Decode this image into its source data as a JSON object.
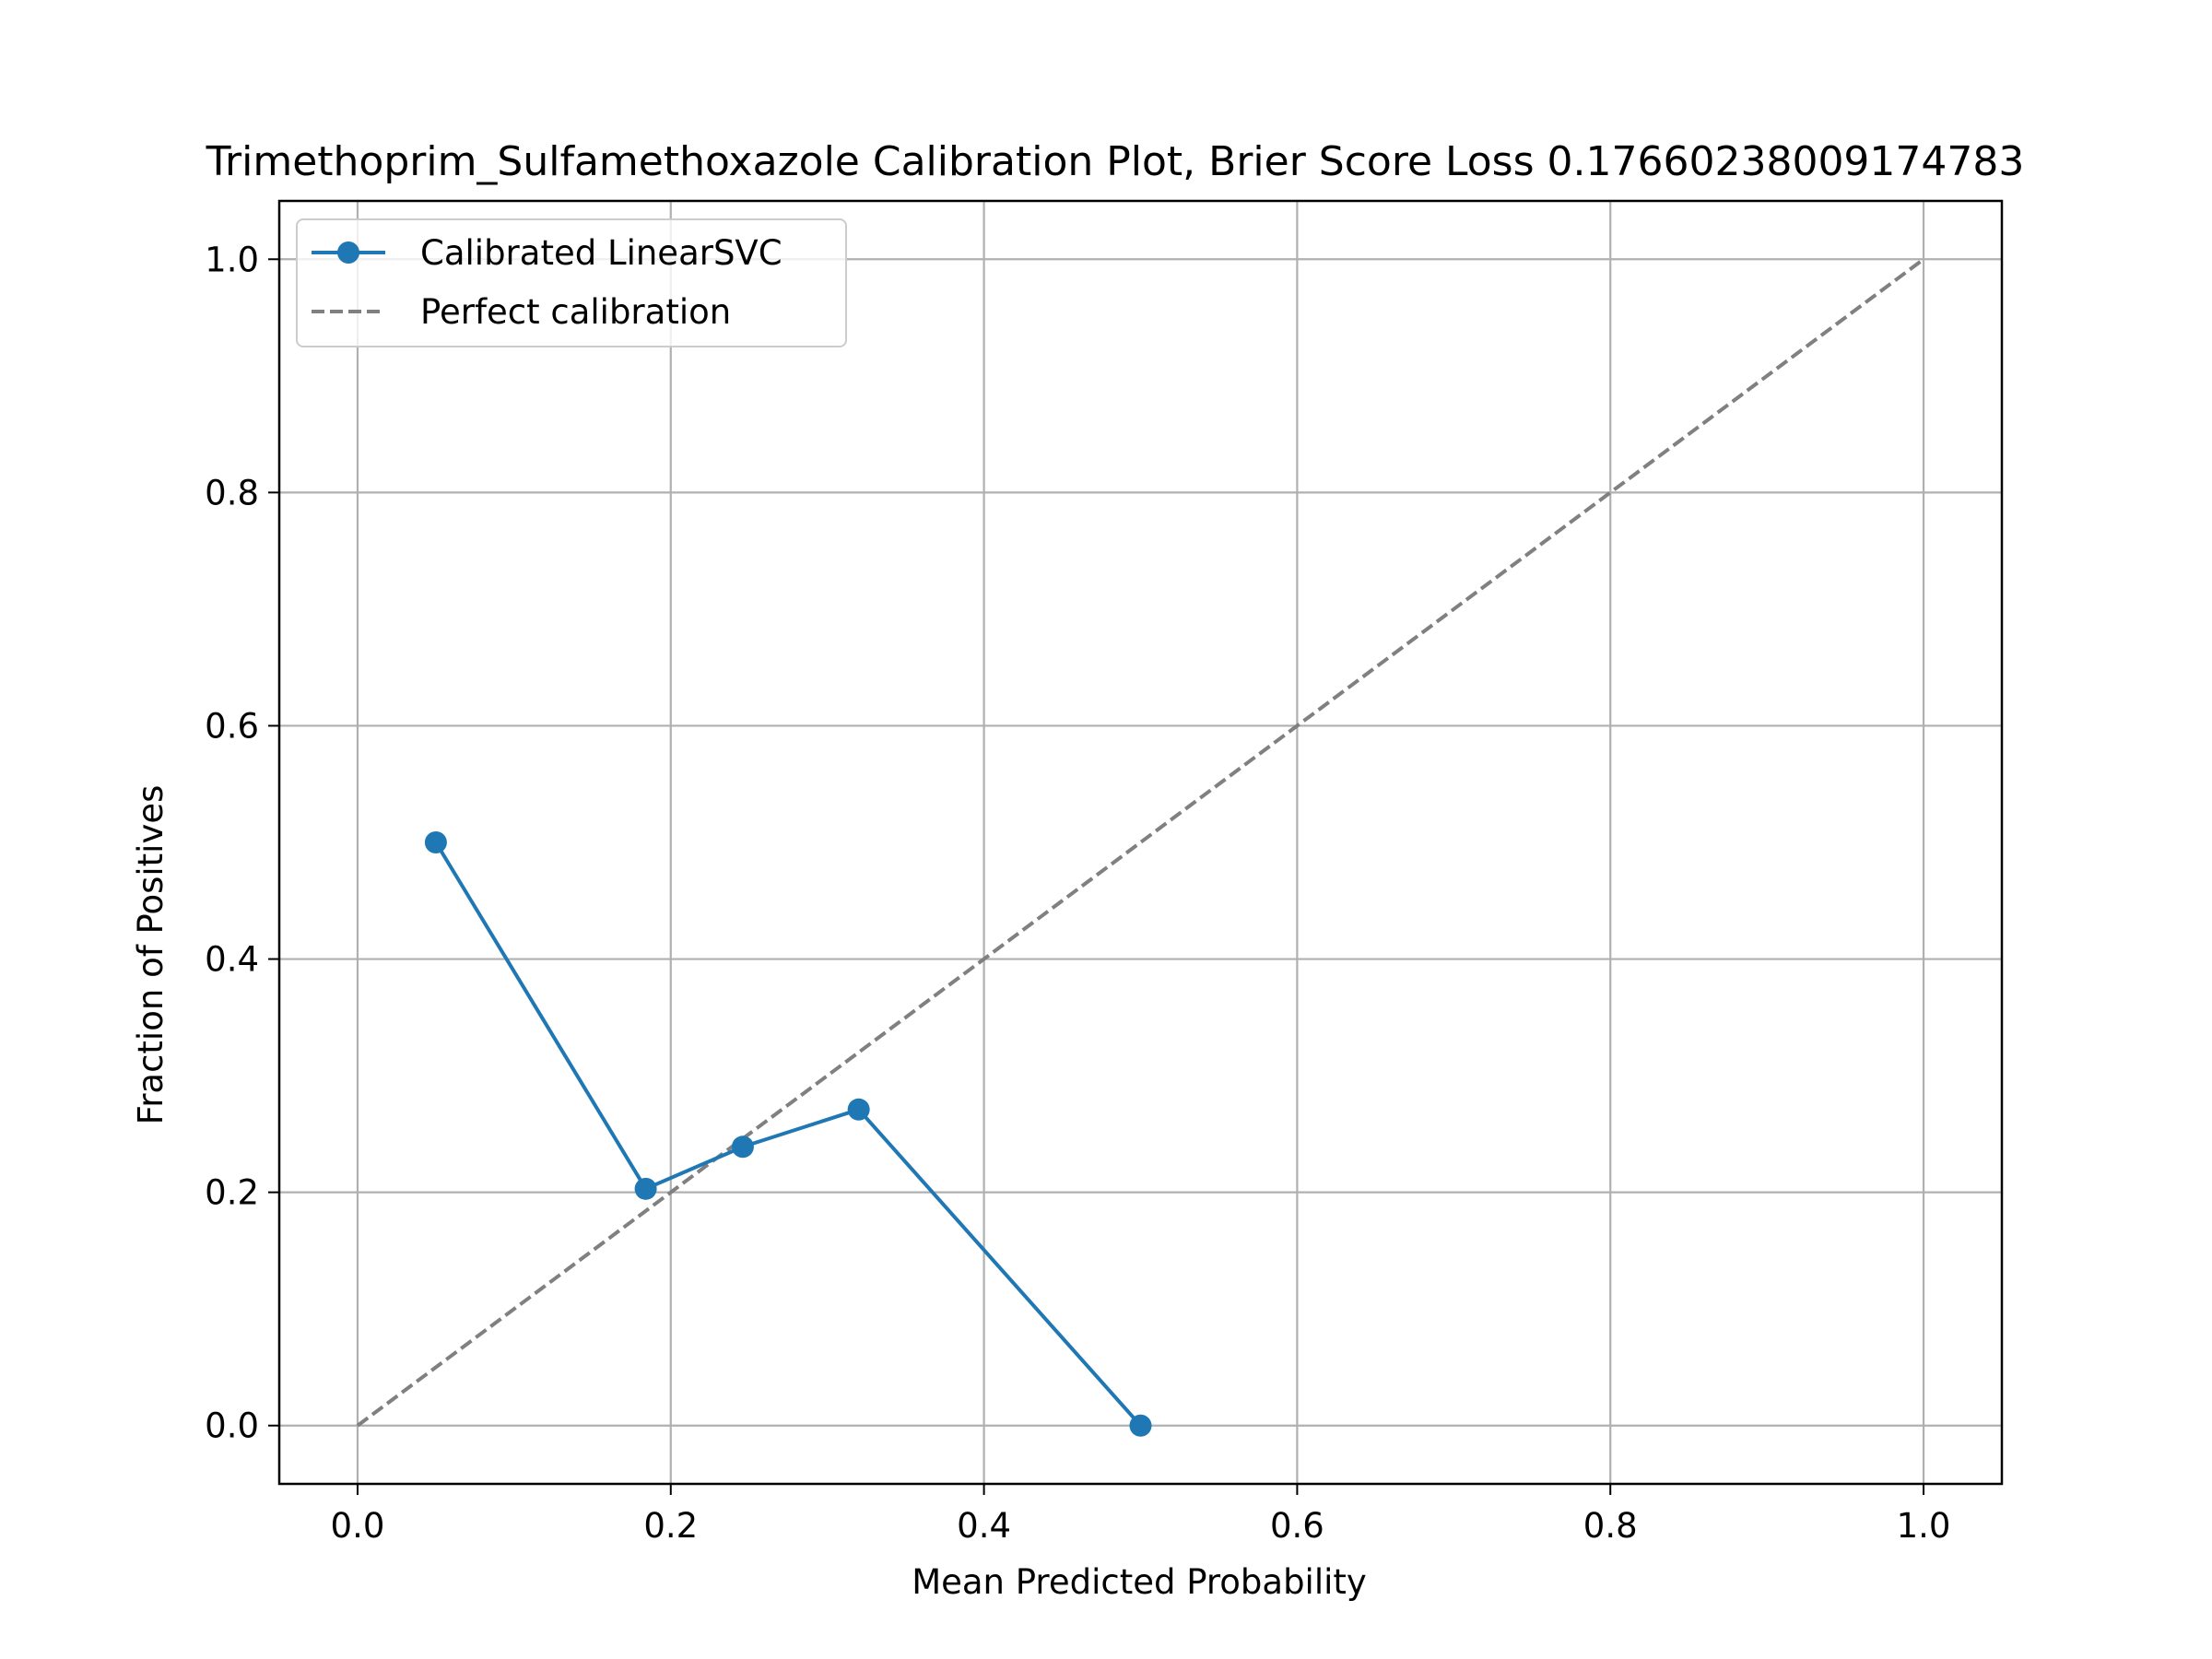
{
  "chart_data": {
    "type": "line",
    "title": "Trimethoprim_Sulfamethoxazole Calibration Plot, Brier Score Loss 0.17660238009174783",
    "xlabel": "Mean Predicted Probability",
    "ylabel": "Fraction of Positives",
    "xlim": [
      -0.05,
      1.05
    ],
    "ylim": [
      -0.05,
      1.05
    ],
    "xticks": [
      0.0,
      0.2,
      0.4,
      0.6,
      0.8,
      1.0
    ],
    "yticks": [
      0.0,
      0.2,
      0.4,
      0.6,
      0.8,
      1.0
    ],
    "xtick_labels": [
      "0.0",
      "0.2",
      "0.4",
      "0.6",
      "0.8",
      "1.0"
    ],
    "ytick_labels": [
      "0.0",
      "0.2",
      "0.4",
      "0.6",
      "0.8",
      "1.0"
    ],
    "grid": true,
    "legend_position": "top-left",
    "series": [
      {
        "name": "Calibrated LinearSVC",
        "color": "#1f77b4",
        "style": "solid",
        "marker": "circle",
        "x": [
          0.05,
          0.184,
          0.246,
          0.32,
          0.5
        ],
        "y": [
          0.5,
          0.203,
          0.239,
          0.271,
          0.0
        ]
      },
      {
        "name": "Perfect calibration",
        "color": "#808080",
        "style": "dashed",
        "marker": "none",
        "x": [
          0.0,
          1.0
        ],
        "y": [
          0.0,
          1.0
        ]
      }
    ]
  }
}
